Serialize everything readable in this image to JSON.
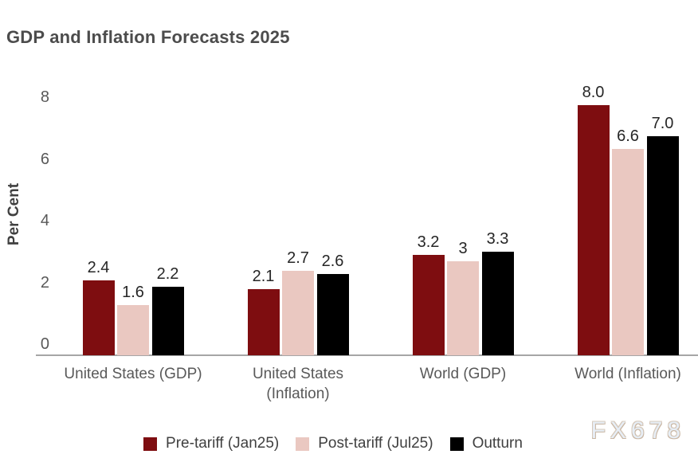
{
  "watermark": "FX678",
  "chart_data": {
    "type": "bar",
    "title": "GDP and Inflation Forecasts 2025",
    "ylabel": "Per Cent",
    "xlabel": "",
    "ylim": [
      0,
      8
    ],
    "yticks": [
      0,
      2,
      4,
      6,
      8
    ],
    "grid": false,
    "legend_position": "bottom",
    "categories": [
      "United States (GDP)",
      "United States (Inflation)",
      "World (GDP)",
      "World (Inflation)"
    ],
    "categories_display": [
      [
        "United States (GDP)"
      ],
      [
        "United States",
        "(Inflation)"
      ],
      [
        "World (GDP)"
      ],
      [
        "World (Inflation)"
      ]
    ],
    "series": [
      {
        "name": "Pre-tariff (Jan25)",
        "color": "#7e0d10",
        "values": [
          2.4,
          2.1,
          3.2,
          8.0
        ],
        "labels": [
          "2.4",
          "2.1",
          "3.2",
          "8.0"
        ]
      },
      {
        "name": "Post-tariff (Jul25)",
        "color": "#eac8c1",
        "values": [
          1.6,
          2.7,
          3.0,
          6.6
        ],
        "labels": [
          "1.6",
          "2.7",
          "3",
          "6.6"
        ]
      },
      {
        "name": "Outturn",
        "color": "#000000",
        "values": [
          2.2,
          2.6,
          3.3,
          7.0
        ],
        "labels": [
          "2.2",
          "2.6",
          "3.3",
          "7.0"
        ]
      }
    ],
    "colors": {
      "axis_line": "#a6a6a6",
      "title_text": "#4c4c4c",
      "tick_text": "#595959",
      "category_text": "#595959",
      "value_label_text": "#262626",
      "legend_text": "#404040"
    }
  }
}
